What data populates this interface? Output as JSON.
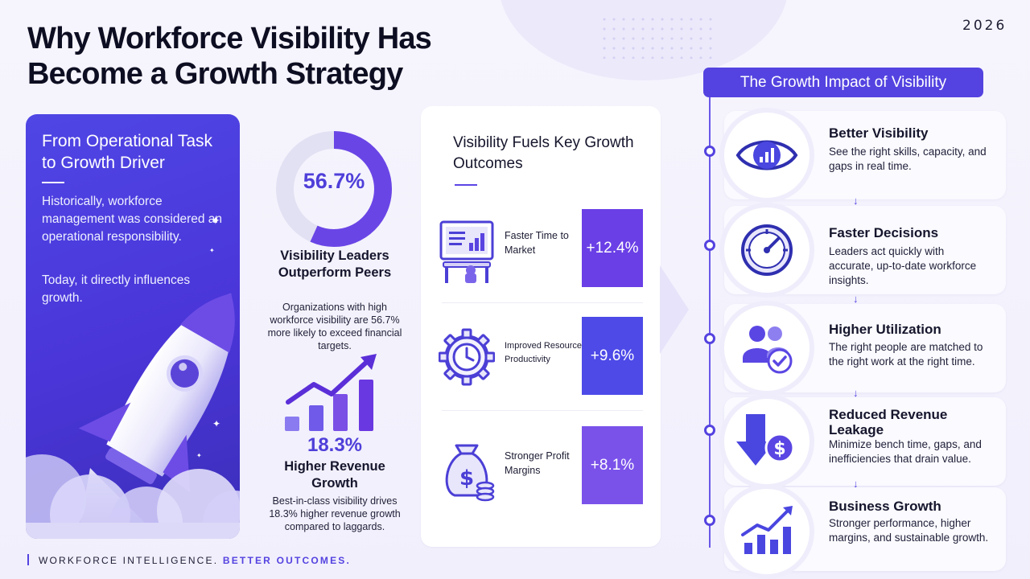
{
  "year": "2026",
  "title": "Why Workforce Visibility Has Become a Growth Strategy",
  "left_panel": {
    "heading": "From Operational Task to Growth Driver",
    "para1": "Historically, workforce management was considered an operational responsibility.",
    "para2": "Today, it directly influences growth."
  },
  "middle": {
    "donut_value": "56.7%",
    "donut_fraction": 0.567,
    "stat1_heading": "Visibility Leaders Outperform Peers",
    "stat1_text": "Organizations with high workforce visibility are 56.7% more likely to exceed financial targets.",
    "stat2_value": "18.3%",
    "stat2_heading": "Higher Revenue Growth",
    "stat2_text": "Best-in-class visibility drives 18.3% higher revenue growth compared to laggards."
  },
  "center": {
    "title": "Visibility Fuels Key Growth Outcomes",
    "rows": [
      {
        "label": "Faster Time to Market",
        "value": "+12.4%",
        "icon": "monitor-chart-icon",
        "color": "#6a3fe6"
      },
      {
        "label": "Improved Resource Productivity",
        "value": "+9.6%",
        "icon": "gear-clock-icon",
        "color": "#4d4ae8"
      },
      {
        "label": "Stronger Profit Margins",
        "value": "+8.1%",
        "icon": "money-bag-icon",
        "color": "#7a52ea"
      }
    ]
  },
  "right": {
    "header": "The Growth Impact of Visibility",
    "cards": [
      {
        "title": "Better Visibility",
        "text": "See the right skills, capacity, and gaps in real time.",
        "icon": "eye-chart-icon"
      },
      {
        "title": "Faster Decisions",
        "text": "Leaders act quickly with accurate, up-to-date workforce insights.",
        "icon": "gauge-icon"
      },
      {
        "title": "Higher Utilization",
        "text": "The right people are matched to the right work at the right time.",
        "icon": "people-check-icon"
      },
      {
        "title": "Reduced Revenue Leakage",
        "text": "Minimize bench time, gaps, and inefficiencies that drain value.",
        "icon": "down-arrow-dollar-icon"
      },
      {
        "title": "Business Growth",
        "text": "Stronger performance, higher margins, and sustainable growth.",
        "icon": "growth-chart-icon"
      }
    ]
  },
  "footer": {
    "part1": "WORKFORCE INTELLIGENCE.",
    "part2": "BETTER OUTCOMES."
  },
  "colors": {
    "accent": "#5443e0",
    "panel": "#4f46e5"
  }
}
